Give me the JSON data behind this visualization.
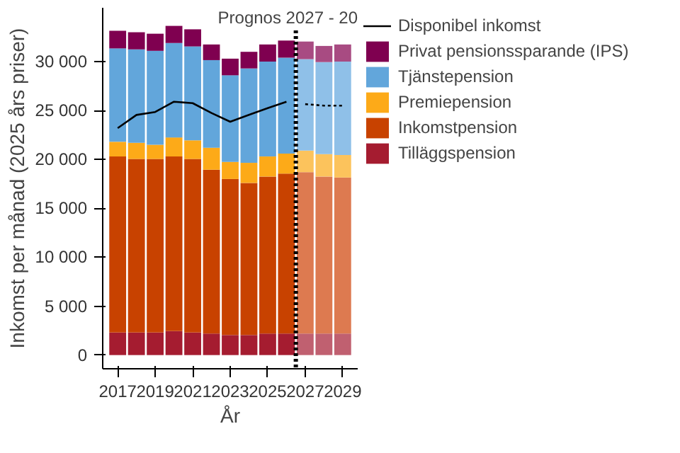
{
  "chart_data": {
    "type": "bar",
    "stacked": true,
    "xlabel": "År",
    "ylabel": "Inkomst per månad (2025 års priser)",
    "x": [
      2017,
      2018,
      2019,
      2020,
      2021,
      2022,
      2023,
      2024,
      2025,
      2026,
      2027,
      2028,
      2029
    ],
    "xlim": [
      2016.2,
      2029.8
    ],
    "xticks": [
      2017,
      2019,
      2021,
      2023,
      2025,
      2027,
      2029
    ],
    "ylim": [
      -1400,
      35500
    ],
    "yticks": [
      0,
      {
        "value": 5000,
        "label": "5 000"
      },
      {
        "value": 10000,
        "label": "10 000"
      },
      {
        "value": 15000,
        "label": "15 000"
      },
      {
        "value": 20000,
        "label": "20 000"
      },
      {
        "value": 25000,
        "label": "25 000"
      },
      {
        "value": 30000,
        "label": "30 000"
      }
    ],
    "grid": false,
    "legend": "right",
    "series": [
      {
        "name": "Tilläggspension",
        "color": "#a51c30",
        "colors": [
          null,
          null,
          null,
          null,
          null,
          null,
          null,
          null,
          null,
          null,
          "#c06070",
          "#c06070",
          "#c06070"
        ],
        "values": [
          2300,
          2300,
          2300,
          2450,
          2300,
          2200,
          2050,
          2050,
          2200,
          2200,
          2200,
          2200,
          2200
        ]
      },
      {
        "name": "Inkomstpension",
        "color": "#c84200",
        "colors": [
          null,
          null,
          null,
          null,
          null,
          null,
          null,
          null,
          null,
          null,
          "#dd7a50",
          "#dd7a50",
          "#dd7a50"
        ],
        "values": [
          18000,
          17750,
          17750,
          17850,
          17750,
          16750,
          15950,
          15550,
          16050,
          16350,
          16500,
          16050,
          15950
        ]
      },
      {
        "name": "Premiepension",
        "color": "#fdaa18",
        "colors": [
          null,
          null,
          null,
          null,
          null,
          null,
          null,
          null,
          null,
          null,
          "#fcc35c",
          "#fcc35c",
          "#fcc35c"
        ],
        "values": [
          1500,
          1650,
          1450,
          1950,
          1900,
          2250,
          1750,
          2050,
          2050,
          2050,
          2200,
          2300,
          2300
        ]
      },
      {
        "name": "Tjänstepension",
        "color": "#62a6db",
        "colors": [
          null,
          null,
          null,
          null,
          null,
          null,
          null,
          null,
          null,
          null,
          "#8fc0e8",
          "#8fc0e8",
          "#8fc0e8"
        ],
        "values": [
          9550,
          9550,
          9600,
          9650,
          9600,
          8950,
          8850,
          9650,
          9700,
          9800,
          9350,
          9400,
          9550
        ]
      },
      {
        "name": "Privat pensionssparande (IPS)",
        "color": "#7f0050",
        "colors": [
          null,
          null,
          null,
          null,
          null,
          null,
          null,
          null,
          null,
          null,
          "#a84b82",
          "#a84b82",
          "#a84b82"
        ],
        "values": [
          1800,
          1750,
          1750,
          1750,
          1750,
          1600,
          1700,
          1700,
          1750,
          1750,
          1800,
          1650,
          1750
        ]
      },
      {
        "name": "Disponibel inkomst",
        "type": "line",
        "color": "#000000",
        "line_style": "solid",
        "values": [
          23200,
          24550,
          24850,
          25900,
          25750,
          24750,
          23850,
          24550,
          25250,
          25900,
          null,
          null,
          null
        ]
      },
      {
        "type": "line",
        "color": "#000000",
        "line_style": "dotted",
        "values": [
          null,
          null,
          null,
          null,
          null,
          null,
          null,
          null,
          null,
          null,
          25650,
          25500,
          25500
        ]
      }
    ],
    "ref_lines": [
      {
        "axis": "x",
        "value": 2026.5,
        "label": "Prognos 2027 - 20",
        "color": "#000000",
        "line_style": "dotted"
      }
    ]
  }
}
